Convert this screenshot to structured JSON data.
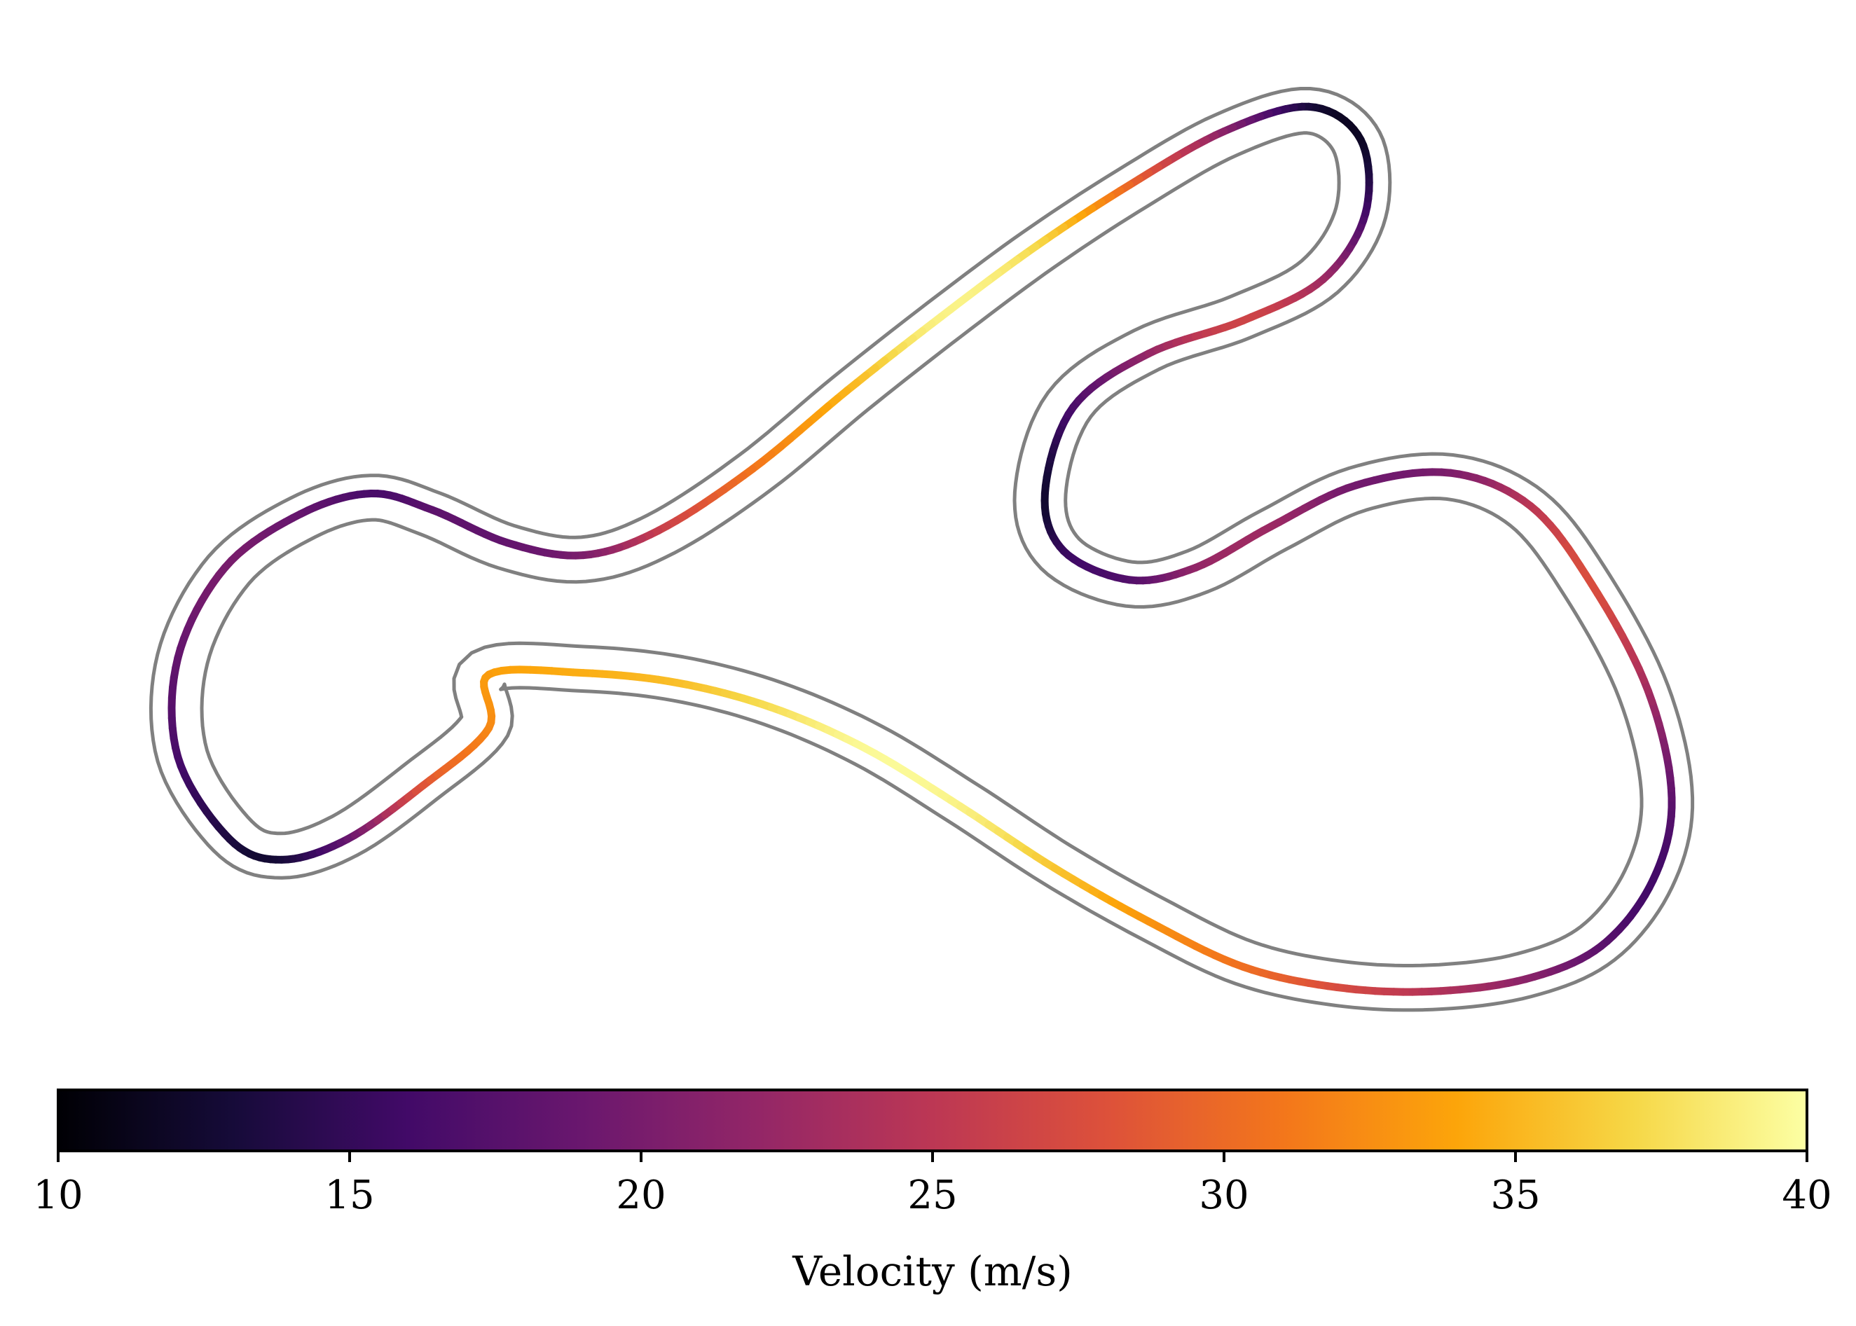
{
  "chart_data": {
    "type": "line",
    "description_of_marks": "racing line around a closed track, colored by velocity",
    "colormap": "inferno",
    "colorbar": {
      "label": "Velocity (m/s)",
      "range": [
        10,
        40
      ],
      "ticks": [
        10,
        15,
        20,
        25,
        30,
        35,
        40
      ],
      "tick_labels": [
        "10",
        "15",
        "20",
        "25",
        "30",
        "35",
        "40"
      ],
      "orientation": "horizontal",
      "placement": "bottom"
    },
    "colors": {
      "track_boundary": "#808080",
      "background": "#ffffff"
    },
    "racing_line": [
      {
        "x": 0.0,
        "y": 0.0,
        "v": 33.5
      },
      {
        "x": 10.0,
        "y": 0.2,
        "v": 34.5
      },
      {
        "x": 20.0,
        "y": -1.0,
        "v": 35.5
      },
      {
        "x": 30.0,
        "y": -4.0,
        "v": 37.5
      },
      {
        "x": 40.0,
        "y": -9.0,
        "v": 39.5
      },
      {
        "x": 50.0,
        "y": -16.0,
        "v": 39.0
      },
      {
        "x": 60.0,
        "y": -23.5,
        "v": 36.0
      },
      {
        "x": 70.0,
        "y": -30.0,
        "v": 33.0
      },
      {
        "x": 80.0,
        "y": -35.5,
        "v": 30.5
      },
      {
        "x": 90.0,
        "y": -38.0,
        "v": 27.5
      },
      {
        "x": 100.0,
        "y": -38.5,
        "v": 24.5
      },
      {
        "x": 110.0,
        "y": -37.0,
        "v": 21.5
      },
      {
        "x": 118.0,
        "y": -33.0,
        "v": 18.0
      },
      {
        "x": 123.5,
        "y": -25.0,
        "v": 16.0
      },
      {
        "x": 125.5,
        "y": -15.0,
        "v": 18.0
      },
      {
        "x": 123.0,
        "y": -2.0,
        "v": 23.0
      },
      {
        "x": 117.0,
        "y": 11.0,
        "v": 27.5
      },
      {
        "x": 110.5,
        "y": 20.5,
        "v": 25.0
      },
      {
        "x": 102.0,
        "y": 24.5,
        "v": 20.5
      },
      {
        "x": 92.0,
        "y": 23.0,
        "v": 19.5
      },
      {
        "x": 83.0,
        "y": 18.0,
        "v": 22.5
      },
      {
        "x": 75.0,
        "y": 13.0,
        "v": 22.0
      },
      {
        "x": 68.0,
        "y": 11.5,
        "v": 17.5
      },
      {
        "x": 61.0,
        "y": 15.0,
        "v": 15.5
      },
      {
        "x": 59.0,
        "y": 22.0,
        "v": 12.5
      },
      {
        "x": 62.0,
        "y": 32.5,
        "v": 16.5
      },
      {
        "x": 70.0,
        "y": 39.0,
        "v": 22.0
      },
      {
        "x": 80.0,
        "y": 43.0,
        "v": 26.5
      },
      {
        "x": 88.5,
        "y": 48.0,
        "v": 23.0
      },
      {
        "x": 93.0,
        "y": 56.0,
        "v": 16.5
      },
      {
        "x": 92.5,
        "y": 65.0,
        "v": 12.0
      },
      {
        "x": 87.0,
        "y": 69.0,
        "v": 13.0
      },
      {
        "x": 78.0,
        "y": 66.0,
        "v": 21.0
      },
      {
        "x": 68.0,
        "y": 59.5,
        "v": 29.5
      },
      {
        "x": 58.0,
        "y": 52.0,
        "v": 37.0
      },
      {
        "x": 48.0,
        "y": 43.5,
        "v": 39.0
      },
      {
        "x": 38.0,
        "y": 34.5,
        "v": 35.0
      },
      {
        "x": 28.0,
        "y": 25.0,
        "v": 31.0
      },
      {
        "x": 18.0,
        "y": 17.5,
        "v": 26.0
      },
      {
        "x": 10.0,
        "y": 14.5,
        "v": 20.5
      },
      {
        "x": 2.0,
        "y": 16.0,
        "v": 18.5
      },
      {
        "x": -6.0,
        "y": 20.0,
        "v": 18.0
      },
      {
        "x": -12.5,
        "y": 22.0,
        "v": 16.5
      },
      {
        "x": -20.0,
        "y": 19.5,
        "v": 18.5
      },
      {
        "x": -28.0,
        "y": 13.0,
        "v": 20.0
      },
      {
        "x": -33.0,
        "y": 2.0,
        "v": 18.5
      },
      {
        "x": -33.0,
        "y": -10.0,
        "v": 16.5
      },
      {
        "x": -27.5,
        "y": -20.0,
        "v": 13.5
      },
      {
        "x": -22.0,
        "y": -22.5,
        "v": 13.0
      },
      {
        "x": -15.0,
        "y": -20.0,
        "v": 18.5
      },
      {
        "x": -7.0,
        "y": -13.5,
        "v": 28.0
      },
      {
        "x": 0.0,
        "y": -6.5,
        "v": 32.0
      }
    ],
    "xlim": [
      -37,
      131
    ],
    "ylim": [
      -44,
      76
    ]
  }
}
